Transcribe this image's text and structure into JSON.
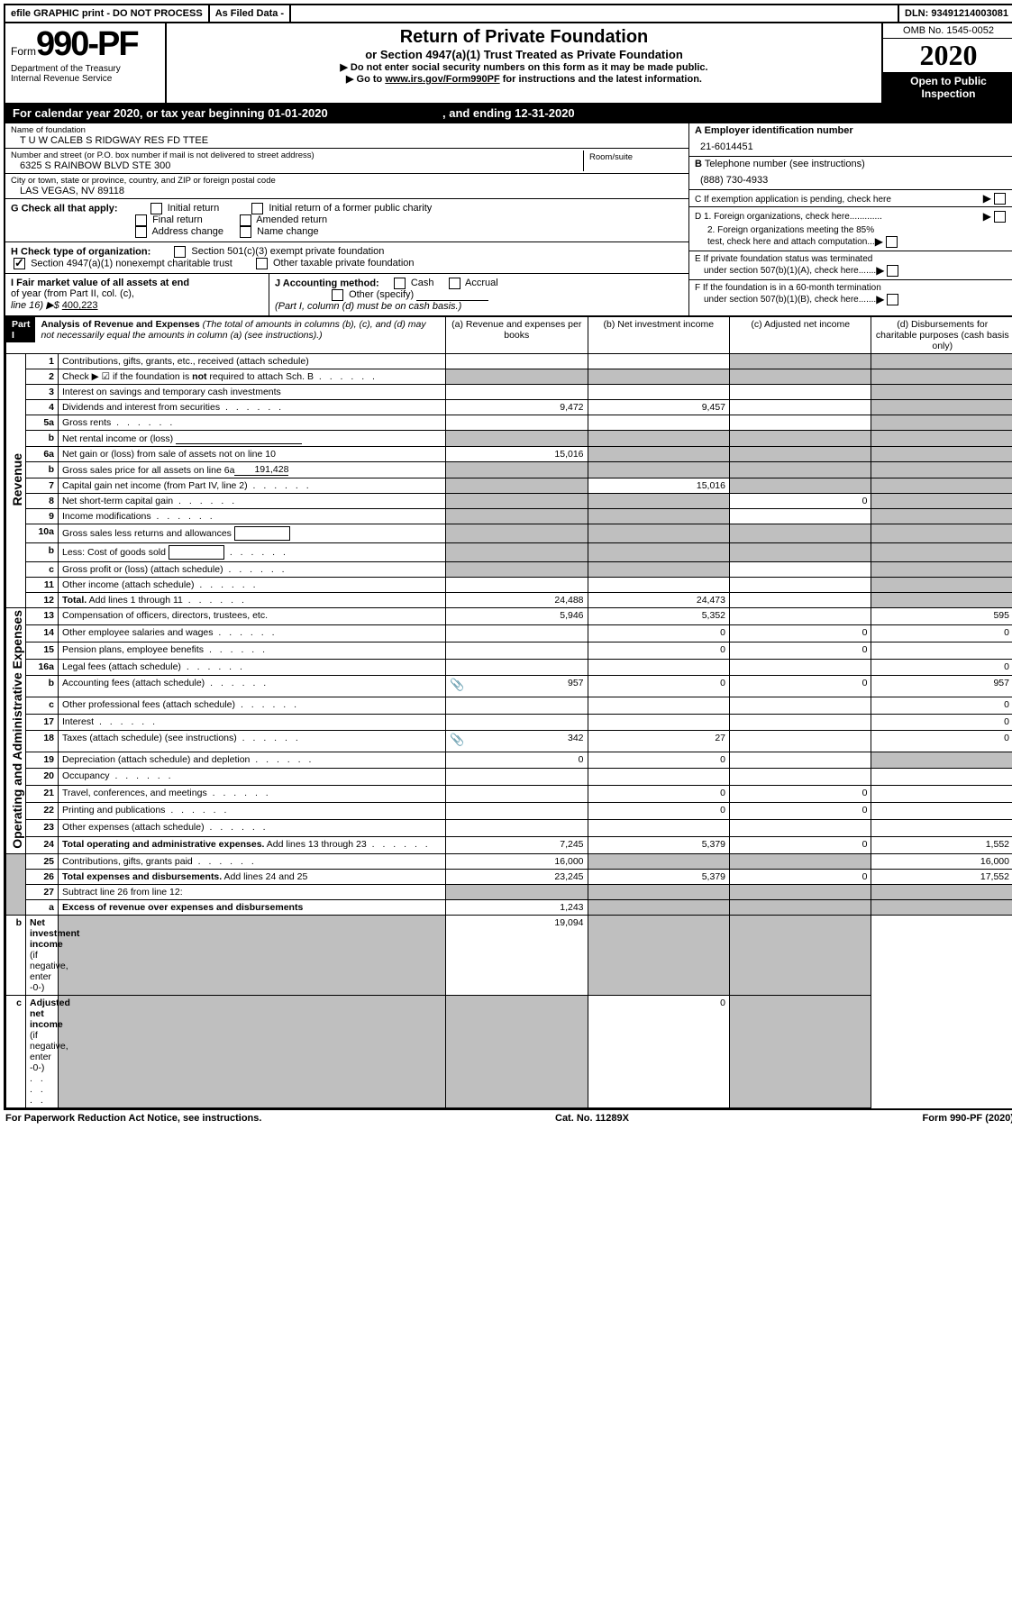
{
  "topbar": {
    "efile": "efile GRAPHIC print - DO NOT PROCESS",
    "asfiled": "As Filed Data -",
    "dln_label": "DLN:",
    "dln": "93491214003081"
  },
  "header": {
    "form_word": "Form",
    "form_no": "990-PF",
    "dept1": "Department of the Treasury",
    "dept2": "Internal Revenue Service",
    "title": "Return of Private Foundation",
    "subtitle": "or Section 4947(a)(1) Trust Treated as Private Foundation",
    "warn1": "▶ Do not enter social security numbers on this form as it may be made public.",
    "warn2_pre": "▶ Go to ",
    "warn2_link": "www.irs.gov/Form990PF",
    "warn2_post": " for instructions and the latest information.",
    "omb": "OMB No. 1545-0052",
    "year": "2020",
    "open": "Open to Public Inspection"
  },
  "calyear": {
    "pre": "For calendar year 2020, or tax year beginning ",
    "begin": "01-01-2020",
    "mid": ", and ending ",
    "end": "12-31-2020"
  },
  "entity": {
    "name_label": "Name of foundation",
    "name": "T U W CALEB S RIDGWAY RES FD TTEE",
    "addr_label": "Number and street (or P.O. box number if mail is not delivered to street address)",
    "addr": "6325 S RAINBOW BLVD STE 300",
    "room_label": "Room/suite",
    "city_label": "City or town, state or province, country, and ZIP or foreign postal code",
    "city": "LAS VEGAS, NV  89118",
    "a_label": "A Employer identification number",
    "ein": "21-6014451",
    "b_label": "B Telephone number (see instructions)",
    "phone": "(888) 730-4933",
    "c_label": "C If exemption application is pending, check here"
  },
  "g": {
    "label": "G Check all that apply:",
    "o1": "Initial return",
    "o2": "Initial return of a former public charity",
    "o3": "Final return",
    "o4": "Amended return",
    "o5": "Address change",
    "o6": "Name change"
  },
  "h": {
    "label": "H Check type of organization:",
    "o1": "Section 501(c)(3) exempt private foundation",
    "o2": "Section 4947(a)(1) nonexempt charitable trust",
    "o3": "Other taxable private foundation"
  },
  "i": {
    "label1": "I Fair market value of all assets at end",
    "label2": "of year (from Part II, col. (c),",
    "label3": "line 16) ▶$ ",
    "fmv": "400,223"
  },
  "j": {
    "label": "J Accounting method:",
    "o1": "Cash",
    "o2": "Accrual",
    "o3": "Other (specify)",
    "note": "(Part I, column (d) must be on cash basis.)"
  },
  "d": {
    "d1": "D 1. Foreign organizations, check here",
    "d2a": "2. Foreign organizations meeting the 85%",
    "d2b": "test, check here and attach computation"
  },
  "e": {
    "e1": "E If private foundation status was terminated",
    "e2": "under section 507(b)(1)(A), check here"
  },
  "f": {
    "f1": "F If the foundation is in a 60-month termination",
    "f2": "under section 507(b)(1)(B), check here"
  },
  "part1": {
    "badge": "Part I",
    "title": "Analysis of Revenue and Expenses",
    "title_note": "(The total of amounts in columns (b), (c), and (d) may not necessarily equal the amounts in column (a) (see instructions).)",
    "col_a": "(a) Revenue and expenses per books",
    "col_b": "(b) Net investment income",
    "col_c": "(c) Adjusted net income",
    "col_d": "(d) Disbursements for charitable purposes (cash basis only)"
  },
  "sides": {
    "revenue": "Revenue",
    "expenses": "Operating and Administrative Expenses"
  },
  "rows": [
    {
      "n": "1",
      "d": "Contributions, gifts, grants, etc., received (attach schedule)",
      "a": "",
      "b": "",
      "c": "grey",
      "dd": "grey"
    },
    {
      "n": "2",
      "d": "Check ▶ ☑ if the foundation is <b>not</b> required to attach Sch. B",
      "a": "grey",
      "b": "grey",
      "c": "grey",
      "dd": "grey",
      "dots": true
    },
    {
      "n": "3",
      "d": "Interest on savings and temporary cash investments",
      "a": "",
      "b": "",
      "c": "",
      "dd": "grey"
    },
    {
      "n": "4",
      "d": "Dividends and interest from securities",
      "a": "9,472",
      "b": "9,457",
      "c": "",
      "dd": "grey",
      "dots": true
    },
    {
      "n": "5a",
      "d": "Gross rents",
      "a": "",
      "b": "",
      "c": "",
      "dd": "grey",
      "dots": true
    },
    {
      "n": "b",
      "d": "Net rental income or (loss)",
      "a": "grey",
      "b": "grey",
      "c": "grey",
      "dd": "grey",
      "underline": true
    },
    {
      "n": "6a",
      "d": "Net gain or (loss) from sale of assets not on line 10",
      "a": "15,016",
      "b": "grey",
      "c": "grey",
      "dd": "grey"
    },
    {
      "n": "b",
      "d": "Gross sales price for all assets on line 6a",
      "a": "grey",
      "b": "grey",
      "c": "grey",
      "dd": "grey",
      "val_inline": "191,428",
      "underline": true
    },
    {
      "n": "7",
      "d": "Capital gain net income (from Part IV, line 2)",
      "a": "grey",
      "b": "15,016",
      "c": "grey",
      "dd": "grey",
      "dots": true
    },
    {
      "n": "8",
      "d": "Net short-term capital gain",
      "a": "grey",
      "b": "grey",
      "c": "0",
      "dd": "grey",
      "dots": true
    },
    {
      "n": "9",
      "d": "Income modifications",
      "a": "grey",
      "b": "grey",
      "c": "",
      "dd": "grey",
      "dots": true
    },
    {
      "n": "10a",
      "d": "Gross sales less returns and allowances",
      "a": "grey",
      "b": "grey",
      "c": "grey",
      "dd": "grey",
      "box": true
    },
    {
      "n": "b",
      "d": "Less: Cost of goods sold",
      "a": "grey",
      "b": "grey",
      "c": "grey",
      "dd": "grey",
      "box": true,
      "dots": true
    },
    {
      "n": "c",
      "d": "Gross profit or (loss) (attach schedule)",
      "a": "grey",
      "b": "grey",
      "c": "",
      "dd": "grey",
      "dots": true
    },
    {
      "n": "11",
      "d": "Other income (attach schedule)",
      "a": "",
      "b": "",
      "c": "",
      "dd": "grey",
      "dots": true
    },
    {
      "n": "12",
      "d": "<b>Total.</b> Add lines 1 through 11",
      "a": "24,488",
      "b": "24,473",
      "c": "",
      "dd": "grey",
      "dots": true
    },
    {
      "n": "13",
      "d": "Compensation of officers, directors, trustees, etc.",
      "a": "5,946",
      "b": "5,352",
      "c": "",
      "dd": "595"
    },
    {
      "n": "14",
      "d": "Other employee salaries and wages",
      "a": "",
      "b": "0",
      "c": "0",
      "dd": "0",
      "dots": true
    },
    {
      "n": "15",
      "d": "Pension plans, employee benefits",
      "a": "",
      "b": "0",
      "c": "0",
      "dd": "",
      "dots": true
    },
    {
      "n": "16a",
      "d": "Legal fees (attach schedule)",
      "a": "",
      "b": "",
      "c": "",
      "dd": "0",
      "dots": true
    },
    {
      "n": "b",
      "d": "Accounting fees (attach schedule)",
      "a": "957",
      "b": "0",
      "c": "0",
      "dd": "957",
      "clip": true,
      "dots": true
    },
    {
      "n": "c",
      "d": "Other professional fees (attach schedule)",
      "a": "",
      "b": "",
      "c": "",
      "dd": "0",
      "dots": true
    },
    {
      "n": "17",
      "d": "Interest",
      "a": "",
      "b": "",
      "c": "",
      "dd": "0",
      "dots": true
    },
    {
      "n": "18",
      "d": "Taxes (attach schedule) (see instructions)",
      "a": "342",
      "b": "27",
      "c": "",
      "dd": "0",
      "clip": true,
      "dots": true
    },
    {
      "n": "19",
      "d": "Depreciation (attach schedule) and depletion",
      "a": "0",
      "b": "0",
      "c": "",
      "dd": "grey",
      "dots": true
    },
    {
      "n": "20",
      "d": "Occupancy",
      "a": "",
      "b": "",
      "c": "",
      "dd": "",
      "dots": true
    },
    {
      "n": "21",
      "d": "Travel, conferences, and meetings",
      "a": "",
      "b": "0",
      "c": "0",
      "dd": "",
      "dots": true
    },
    {
      "n": "22",
      "d": "Printing and publications",
      "a": "",
      "b": "0",
      "c": "0",
      "dd": "",
      "dots": true
    },
    {
      "n": "23",
      "d": "Other expenses (attach schedule)",
      "a": "",
      "b": "",
      "c": "",
      "dd": "",
      "dots": true
    },
    {
      "n": "24",
      "d": "<b>Total operating and administrative expenses.</b> Add lines 13 through 23",
      "a": "7,245",
      "b": "5,379",
      "c": "0",
      "dd": "1,552",
      "dots": true
    },
    {
      "n": "25",
      "d": "Contributions, gifts, grants paid",
      "a": "16,000",
      "b": "grey",
      "c": "grey",
      "dd": "16,000",
      "dots": true
    },
    {
      "n": "26",
      "d": "<b>Total expenses and disbursements.</b> Add lines 24 and 25",
      "a": "23,245",
      "b": "5,379",
      "c": "0",
      "dd": "17,552"
    },
    {
      "n": "27",
      "d": "Subtract line 26 from line 12:",
      "a": "grey",
      "b": "grey",
      "c": "grey",
      "dd": "grey"
    },
    {
      "n": "a",
      "d": "<b>Excess of revenue over expenses and disbursements</b>",
      "a": "1,243",
      "b": "grey",
      "c": "grey",
      "dd": "grey"
    },
    {
      "n": "b",
      "d": "<b>Net investment income</b> (if negative, enter -0-)",
      "a": "grey",
      "b": "19,094",
      "c": "grey",
      "dd": "grey"
    },
    {
      "n": "c",
      "d": "<b>Adjusted net income</b> (if negative, enter -0-)",
      "a": "grey",
      "b": "grey",
      "c": "0",
      "dd": "grey",
      "dots": true
    }
  ],
  "footer": {
    "left": "For Paperwork Reduction Act Notice, see instructions.",
    "mid": "Cat. No. 11289X",
    "right": "Form 990-PF (2020)"
  }
}
